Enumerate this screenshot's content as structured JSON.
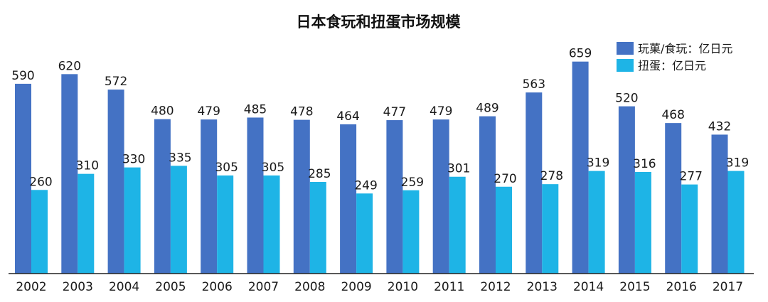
{
  "chart_data": {
    "type": "bar",
    "title": "日本食玩和扭蛋市场规模",
    "categories": [
      "2002",
      "2003",
      "2004",
      "2005",
      "2006",
      "2007",
      "2008",
      "2009",
      "2010",
      "2011",
      "2012",
      "2013",
      "2014",
      "2015",
      "2016",
      "2017"
    ],
    "series": [
      {
        "name": "玩菓/食玩：亿日元",
        "color": "#4472C4",
        "values": [
          590,
          620,
          572,
          480,
          479,
          485,
          478,
          464,
          477,
          479,
          489,
          563,
          659,
          520,
          468,
          432
        ]
      },
      {
        "name": "扭蛋：亿日元",
        "color": "#1EB4E6",
        "values": [
          260,
          310,
          330,
          335,
          305,
          305,
          285,
          249,
          259,
          301,
          270,
          278,
          319,
          316,
          277,
          319
        ]
      }
    ],
    "ylim": [
      0,
      680
    ],
    "legend_position": "top-right",
    "grid": false
  }
}
